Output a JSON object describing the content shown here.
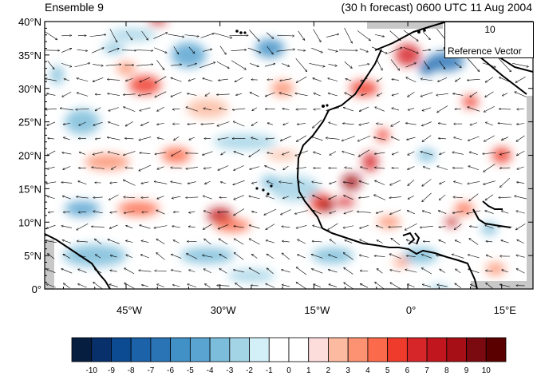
{
  "header": {
    "left_label": "Ensemble 9",
    "right_label": "(30 h forecast) 0600 UTC 11 Aug 2004"
  },
  "reference_vector": {
    "magnitude": "10",
    "label": "Reference Vector"
  },
  "axes": {
    "lat_labels": [
      "40°N",
      "35°N",
      "30°N",
      "25°N",
      "20°N",
      "15°N",
      "10°N",
      "5°N",
      "0°"
    ],
    "lon_labels": [
      "45°W",
      "30°W",
      "15°W",
      "0°",
      "15°E"
    ]
  },
  "colorbar": {
    "labels": [
      "-10",
      "-9",
      "-8",
      "-7",
      "-6",
      "-5",
      "-4",
      "-3",
      "-2",
      "-1",
      "0",
      "1",
      "2",
      "3",
      "4",
      "5",
      "6",
      "7",
      "8",
      "9",
      "10"
    ],
    "colors": [
      "#061e40",
      "#08306b",
      "#0c4a91",
      "#1b62a8",
      "#2a74b6",
      "#4291c6",
      "#5aa4d1",
      "#7cbddb",
      "#a3d4e6",
      "#d3eff8",
      "#ffffff",
      "#ffffff",
      "#fddcdc",
      "#fcbba1",
      "#fc9272",
      "#fb6a4a",
      "#ef3b2c",
      "#d6262a",
      "#c1161d",
      "#a50f15",
      "#7a0a10",
      "#5b0000"
    ]
  },
  "map": {
    "lat_range": [
      0,
      40
    ],
    "lon_range": [
      -58,
      20
    ],
    "coastline_color": "#000000",
    "land_mask_color": "#c8c8c8"
  }
}
